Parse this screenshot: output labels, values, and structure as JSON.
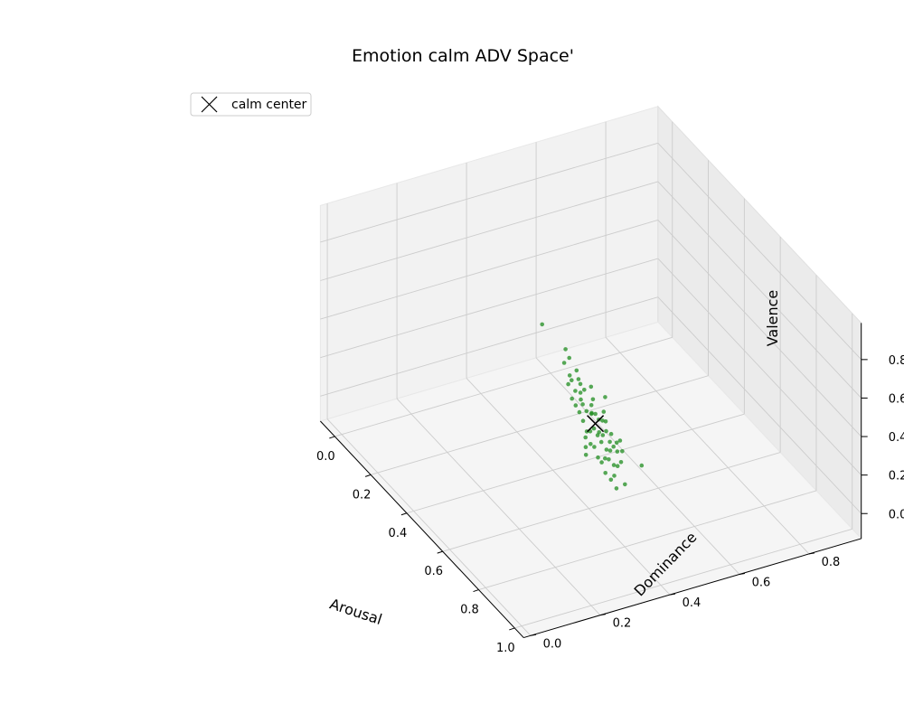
{
  "chart_data": {
    "type": "scatter",
    "projection": "3d",
    "title": "Emotion calm ADV Space'",
    "xlabel": "Arousal",
    "ylabel": "Dominance",
    "zlabel": "Valence",
    "xticks": [
      "0.0",
      "0.2",
      "0.4",
      "0.6",
      "0.8",
      "1.0"
    ],
    "yticks": [
      "0.0",
      "0.2",
      "0.4",
      "0.6",
      "0.8"
    ],
    "zticks": [
      "0.0",
      "0.2",
      "0.4",
      "0.6",
      "0.8"
    ],
    "grid": true,
    "legend": {
      "placement": "top-left",
      "entries": [
        "calm center"
      ]
    },
    "colors": {
      "points": "#1f8c1f",
      "center_marker": "#000000",
      "pane": "#f2f2f2",
      "grid": "#cccccc"
    },
    "series": [
      {
        "name": "calm center",
        "marker": "x",
        "points": [
          {
            "x": 0.52,
            "y": 0.46,
            "z": 0.2
          }
        ]
      },
      {
        "marker": "o",
        "points": [
          {
            "x": 0.05,
            "y": 0.55,
            "z": 0.2
          },
          {
            "x": 0.18,
            "y": 0.55,
            "z": 0.2
          },
          {
            "x": 0.22,
            "y": 0.54,
            "z": 0.2
          },
          {
            "x": 0.25,
            "y": 0.51,
            "z": 0.22
          },
          {
            "x": 0.28,
            "y": 0.53,
            "z": 0.2
          },
          {
            "x": 0.3,
            "y": 0.5,
            "z": 0.21
          },
          {
            "x": 0.31,
            "y": 0.52,
            "z": 0.19
          },
          {
            "x": 0.33,
            "y": 0.49,
            "z": 0.22
          },
          {
            "x": 0.34,
            "y": 0.51,
            "z": 0.2
          },
          {
            "x": 0.35,
            "y": 0.47,
            "z": 0.23
          },
          {
            "x": 0.36,
            "y": 0.5,
            "z": 0.18
          },
          {
            "x": 0.37,
            "y": 0.48,
            "z": 0.21
          },
          {
            "x": 0.38,
            "y": 0.52,
            "z": 0.22
          },
          {
            "x": 0.39,
            "y": 0.46,
            "z": 0.2
          },
          {
            "x": 0.4,
            "y": 0.49,
            "z": 0.24
          },
          {
            "x": 0.41,
            "y": 0.51,
            "z": 0.19
          },
          {
            "x": 0.42,
            "y": 0.47,
            "z": 0.22
          },
          {
            "x": 0.43,
            "y": 0.45,
            "z": 0.21
          },
          {
            "x": 0.44,
            "y": 0.49,
            "z": 0.2
          },
          {
            "x": 0.45,
            "y": 0.46,
            "z": 0.23
          },
          {
            "x": 0.46,
            "y": 0.48,
            "z": 0.18
          },
          {
            "x": 0.47,
            "y": 0.44,
            "z": 0.22
          },
          {
            "x": 0.48,
            "y": 0.47,
            "z": 0.21
          },
          {
            "x": 0.49,
            "y": 0.45,
            "z": 0.24
          },
          {
            "x": 0.5,
            "y": 0.48,
            "z": 0.19
          },
          {
            "x": 0.51,
            "y": 0.43,
            "z": 0.22
          },
          {
            "x": 0.52,
            "y": 0.46,
            "z": 0.25
          },
          {
            "x": 0.53,
            "y": 0.44,
            "z": 0.18
          },
          {
            "x": 0.54,
            "y": 0.47,
            "z": 0.23
          },
          {
            "x": 0.55,
            "y": 0.42,
            "z": 0.21
          },
          {
            "x": 0.56,
            "y": 0.45,
            "z": 0.2
          },
          {
            "x": 0.57,
            "y": 0.43,
            "z": 0.24
          },
          {
            "x": 0.58,
            "y": 0.46,
            "z": 0.22
          },
          {
            "x": 0.59,
            "y": 0.41,
            "z": 0.19
          },
          {
            "x": 0.6,
            "y": 0.44,
            "z": 0.23
          },
          {
            "x": 0.61,
            "y": 0.42,
            "z": 0.25
          },
          {
            "x": 0.62,
            "y": 0.45,
            "z": 0.21
          },
          {
            "x": 0.63,
            "y": 0.4,
            "z": 0.22
          },
          {
            "x": 0.64,
            "y": 0.43,
            "z": 0.2
          },
          {
            "x": 0.65,
            "y": 0.41,
            "z": 0.26
          },
          {
            "x": 0.66,
            "y": 0.44,
            "z": 0.23
          },
          {
            "x": 0.67,
            "y": 0.39,
            "z": 0.21
          },
          {
            "x": 0.68,
            "y": 0.42,
            "z": 0.24
          },
          {
            "x": 0.69,
            "y": 0.4,
            "z": 0.22
          },
          {
            "x": 0.7,
            "y": 0.43,
            "z": 0.25
          },
          {
            "x": 0.71,
            "y": 0.38,
            "z": 0.23
          },
          {
            "x": 0.72,
            "y": 0.41,
            "z": 0.21
          },
          {
            "x": 0.73,
            "y": 0.39,
            "z": 0.26
          },
          {
            "x": 0.74,
            "y": 0.42,
            "z": 0.24
          },
          {
            "x": 0.75,
            "y": 0.37,
            "z": 0.22
          },
          {
            "x": 0.76,
            "y": 0.4,
            "z": 0.25
          },
          {
            "x": 0.78,
            "y": 0.38,
            "z": 0.23
          },
          {
            "x": 0.8,
            "y": 0.36,
            "z": 0.24
          },
          {
            "x": 0.82,
            "y": 0.39,
            "z": 0.22
          },
          {
            "x": 0.85,
            "y": 0.35,
            "z": 0.25
          },
          {
            "x": 0.4,
            "y": 0.55,
            "z": 0.17
          },
          {
            "x": 0.45,
            "y": 0.52,
            "z": 0.16
          },
          {
            "x": 0.5,
            "y": 0.5,
            "z": 0.17
          },
          {
            "x": 0.55,
            "y": 0.49,
            "z": 0.16
          },
          {
            "x": 0.6,
            "y": 0.48,
            "z": 0.17
          },
          {
            "x": 0.65,
            "y": 0.47,
            "z": 0.18
          },
          {
            "x": 0.62,
            "y": 0.38,
            "z": 0.27
          },
          {
            "x": 0.66,
            "y": 0.36,
            "z": 0.27
          },
          {
            "x": 0.7,
            "y": 0.34,
            "z": 0.28
          },
          {
            "x": 0.58,
            "y": 0.5,
            "z": 0.15
          },
          {
            "x": 0.7,
            "y": 0.5,
            "z": 0.14
          }
        ]
      }
    ]
  }
}
